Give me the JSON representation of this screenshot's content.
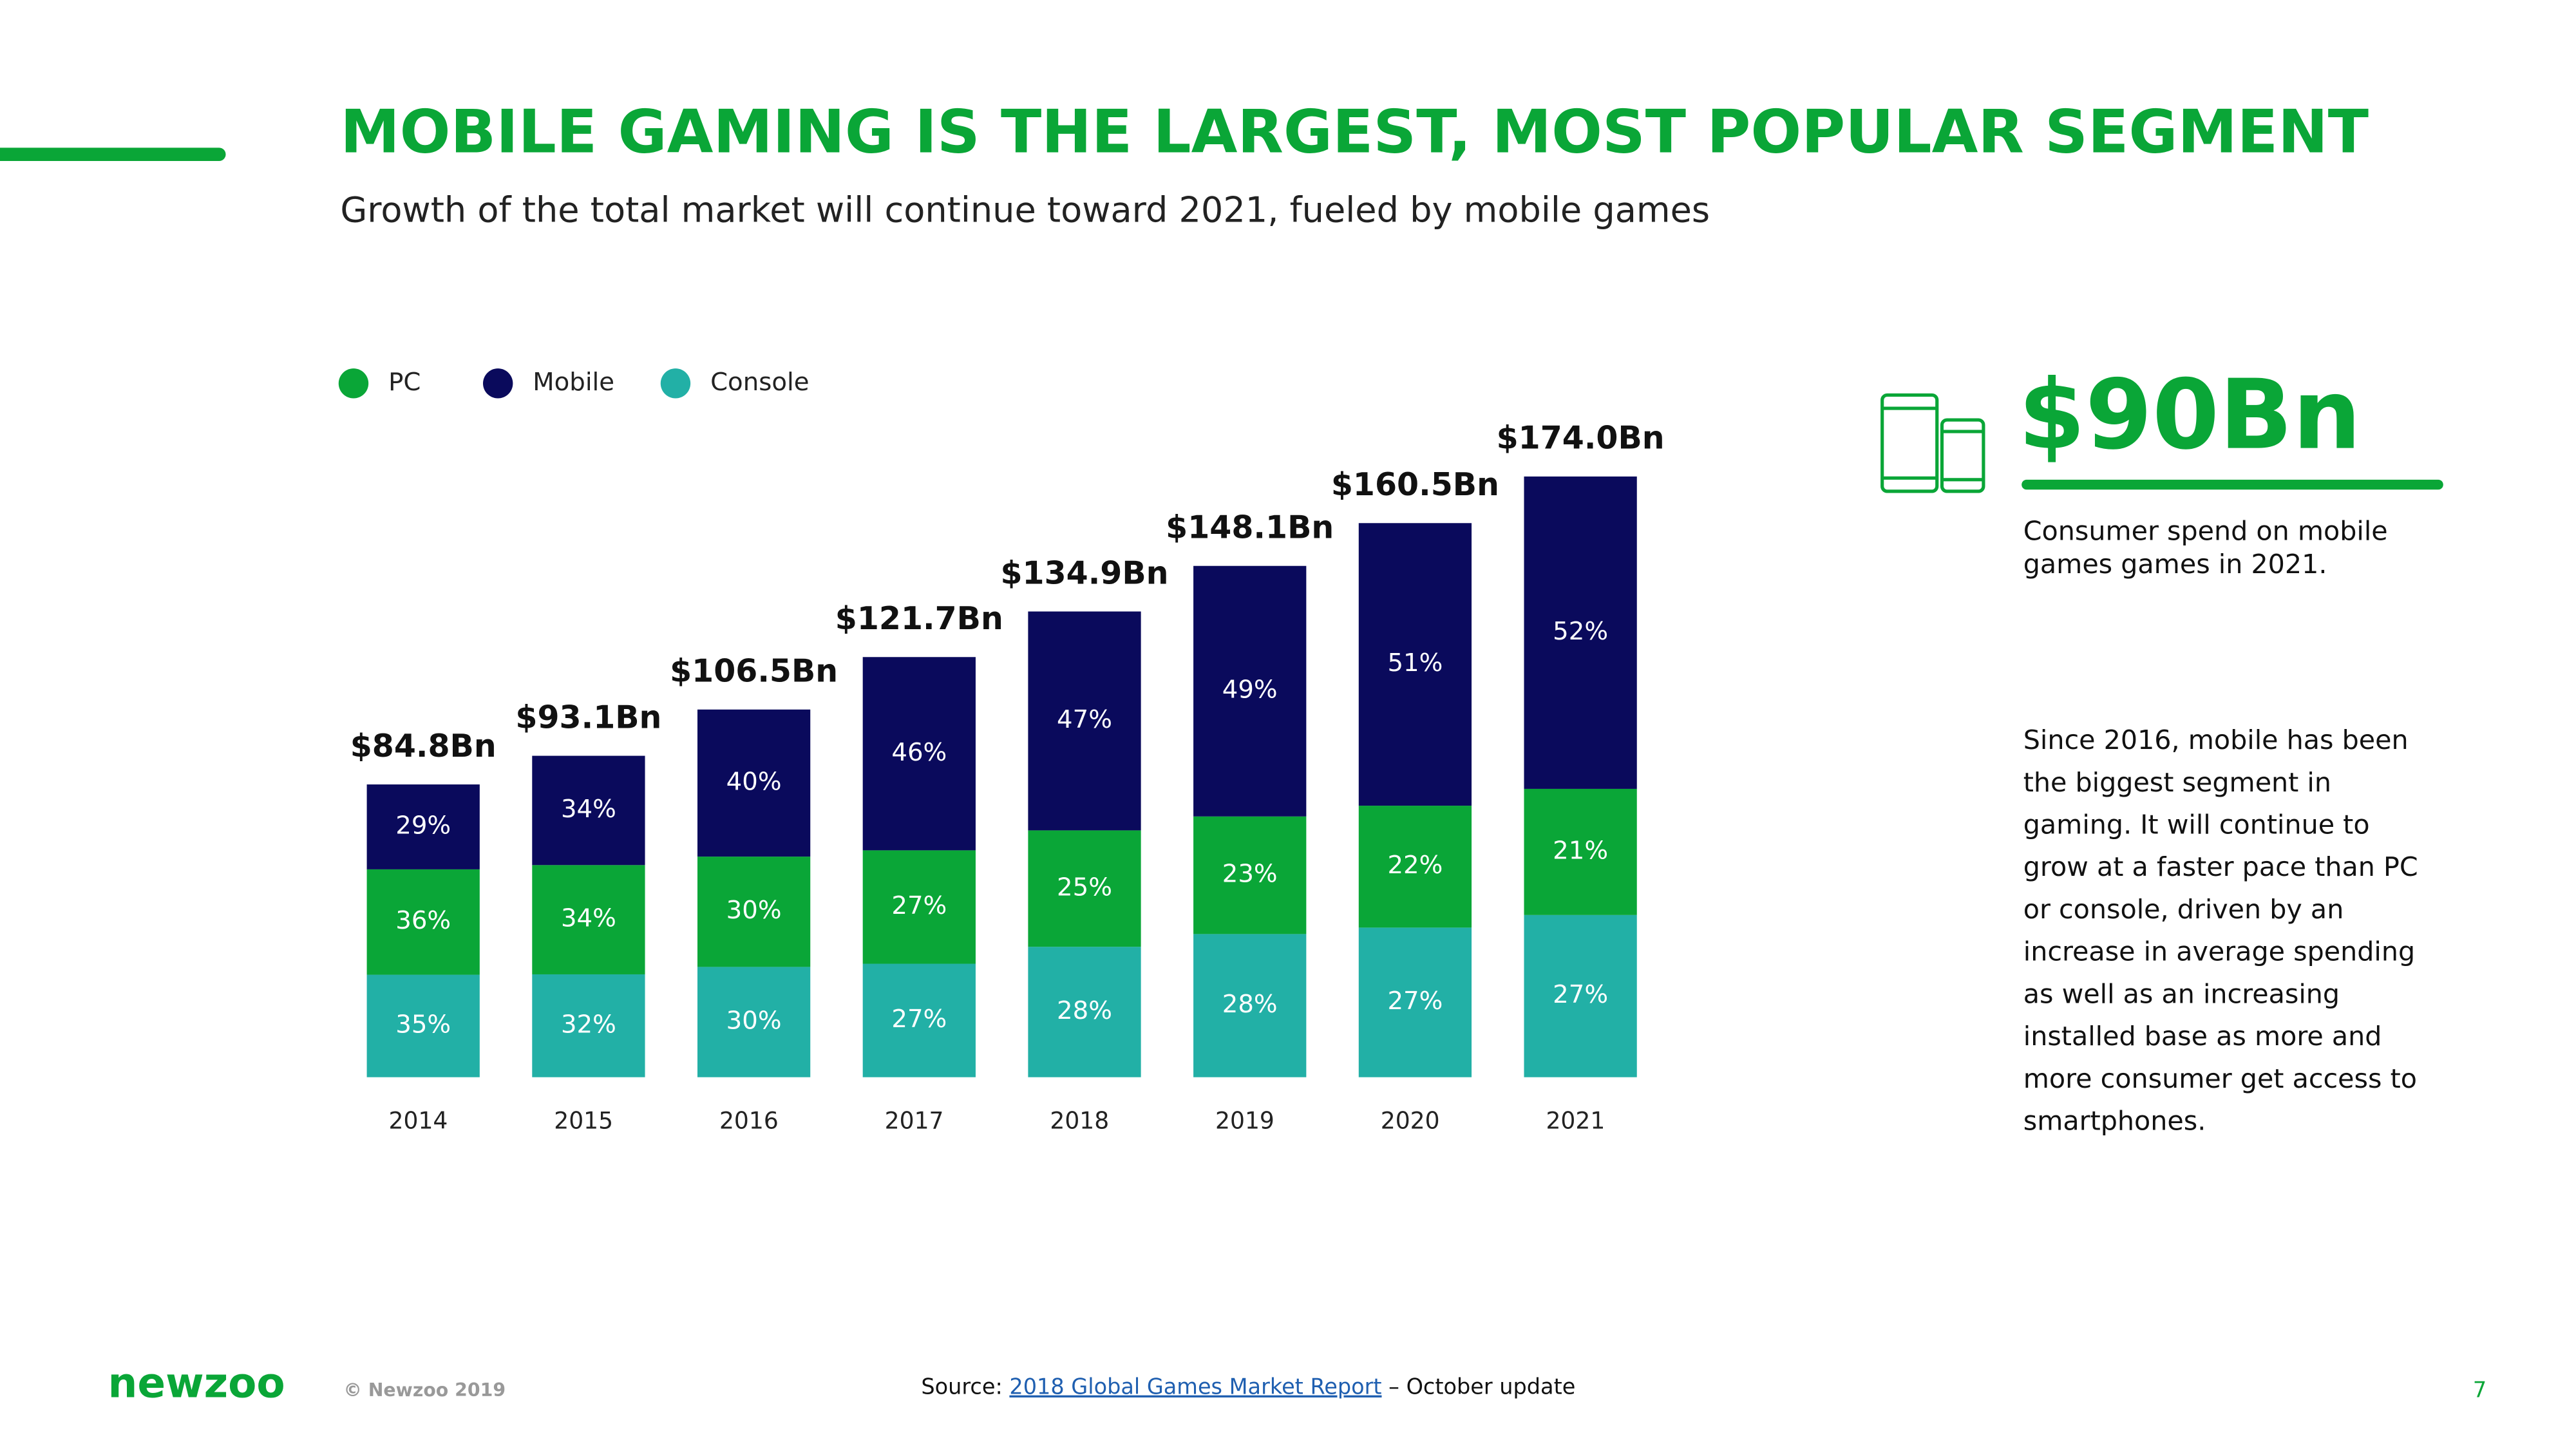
{
  "header": {
    "title": "MOBILE GAMING IS THE LARGEST, MOST POPULAR SEGMENT",
    "subtitle": "Growth of the total market will continue toward 2021, fueled by mobile games"
  },
  "chart_data": {
    "type": "bar",
    "stacked": true,
    "categories": [
      "2014",
      "2015",
      "2016",
      "2017",
      "2018",
      "2019",
      "2020",
      "2021"
    ],
    "series": [
      {
        "name": "PC",
        "color": "#0aa637",
        "values": [
          36,
          34,
          30,
          27,
          25,
          23,
          22,
          21
        ],
        "value_labels": [
          "36%",
          "34%",
          "30%",
          "27%",
          "25%",
          "23%",
          "22%",
          "21%"
        ]
      },
      {
        "name": "Mobile",
        "color": "#0a0a5c",
        "values": [
          29,
          34,
          40,
          46,
          47,
          49,
          51,
          52
        ],
        "value_labels": [
          "29%",
          "34%",
          "40%",
          "46%",
          "47%",
          "49%",
          "51%",
          "52%"
        ]
      },
      {
        "name": "Console",
        "color": "#22b0a6",
        "values": [
          35,
          32,
          30,
          27,
          28,
          28,
          27,
          27
        ],
        "value_labels": [
          "35%",
          "32%",
          "30%",
          "27%",
          "28%",
          "28%",
          "27%",
          "27%"
        ]
      }
    ],
    "totals": {
      "values": [
        84.8,
        93.1,
        106.5,
        121.7,
        134.9,
        148.1,
        160.5,
        174.0
      ],
      "value_labels": [
        "$84.8Bn",
        "$93.1Bn",
        "$106.5Bn",
        "$121.7Bn",
        "$134.9Bn",
        "$148.1Bn",
        "$160.5Bn",
        "$174.0Bn"
      ]
    }
  },
  "side": {
    "stat": "$90Bn",
    "caption_lines": [
      "Consumer spend on mobile",
      "games games in 2021."
    ],
    "paragraph_lines": [
      "Since 2016, mobile has been",
      "the biggest segment in",
      "gaming. It will continue to",
      "grow at a faster pace than PC",
      "or console, driven by an",
      "increase in average spending",
      "as well as an increasing",
      "installed base as more and",
      "more consumer get access to",
      "smartphones."
    ]
  },
  "footer": {
    "logo": "newzoo",
    "copyright": "© Newzoo 2019",
    "source_prefix": "Source: ",
    "source_link": "2018 Global Games Market Report",
    "source_suffix": " – October update",
    "page": "7"
  }
}
